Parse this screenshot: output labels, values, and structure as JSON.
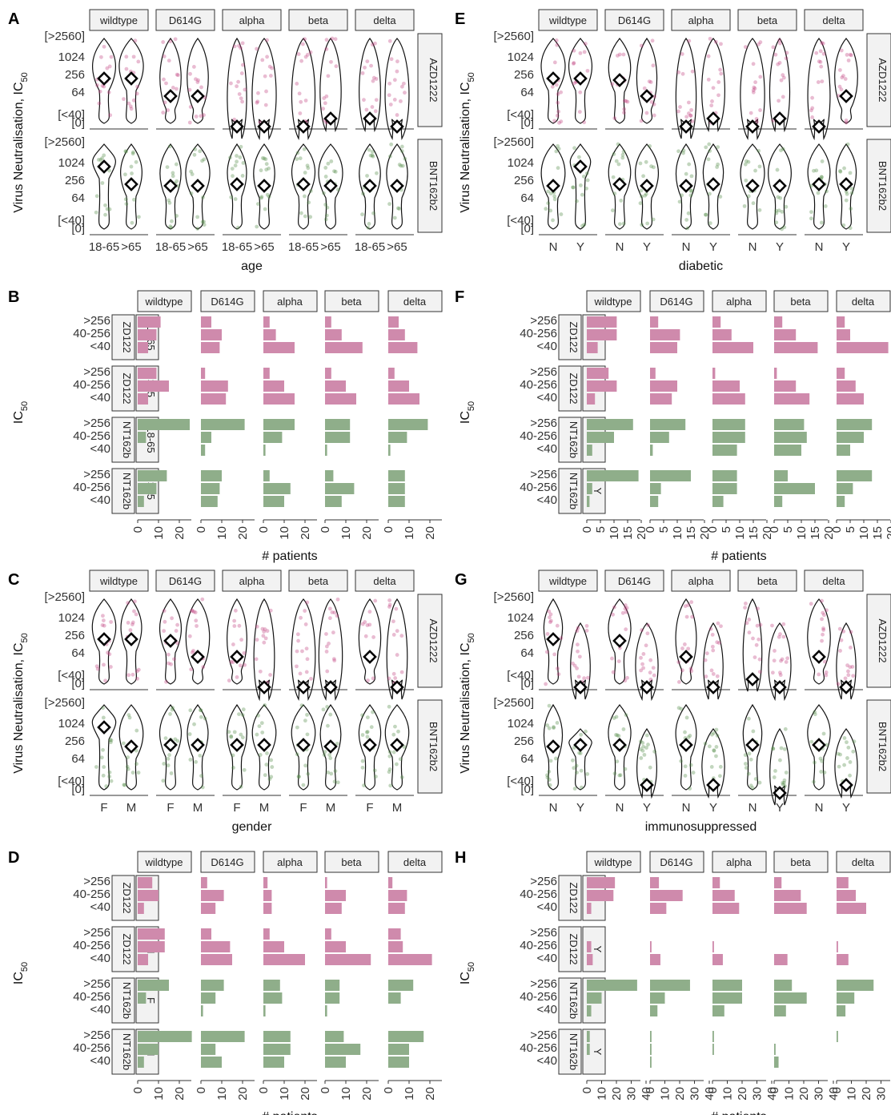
{
  "colors": {
    "AZD1222": "#c0407f",
    "BNT162b2": "#4f8a45",
    "bar_az": "#cf8aac",
    "bar_bnt": "#8fae8a"
  },
  "variants": [
    "wildtype",
    "D614G",
    "alpha",
    "beta",
    "delta"
  ],
  "vaccines": [
    "AZD1222",
    "BNT162b2"
  ],
  "vaccine_strip_labels": [
    "AZD1222",
    "BNT162b2"
  ],
  "bar_vaccine_labels": [
    "ZD122",
    "NT162b"
  ],
  "violin_y_ticks": [
    "[>2560]",
    "1024",
    "256",
    "64",
    "[<40]",
    "[0]"
  ],
  "bar_categories": [
    ">256",
    "40-256",
    "<40"
  ],
  "ylabel_violin": "Virus Neutralisation,  IC",
  "ylabel_bar": "IC",
  "ylabel_sub": "50",
  "xlabel_bar": "# patients",
  "panels": [
    {
      "letter": "A",
      "type": "violin",
      "xlabel": "age",
      "groups": [
        "18-65",
        ">65"
      ]
    },
    {
      "letter": "B",
      "type": "bar",
      "groups": [
        "18-65",
        ">65"
      ],
      "xticks": [
        "0",
        "10",
        "20"
      ]
    },
    {
      "letter": "C",
      "type": "violin",
      "xlabel": "gender",
      "groups": [
        "F",
        "M"
      ]
    },
    {
      "letter": "D",
      "type": "bar",
      "groups": [
        "F",
        "M"
      ],
      "xticks": [
        "0",
        "10",
        "20"
      ]
    },
    {
      "letter": "E",
      "type": "violin",
      "xlabel": "diabetic",
      "groups": [
        "N",
        "Y"
      ]
    },
    {
      "letter": "F",
      "type": "bar",
      "groups": [
        "N",
        "Y"
      ],
      "xticks": [
        "0",
        "5",
        "10",
        "15",
        "20"
      ]
    },
    {
      "letter": "G",
      "type": "violin",
      "xlabel": "immunosuppressed",
      "groups": [
        "N",
        "Y"
      ]
    },
    {
      "letter": "H",
      "type": "bar",
      "groups": [
        "N",
        "Y"
      ],
      "xticks": [
        "0",
        "10",
        "20",
        "30",
        "40"
      ]
    }
  ],
  "chart_data": [
    {
      "panel": "A",
      "type": "violin",
      "yscale": "log2",
      "y_ticks": [
        "[>2560]",
        "1024",
        "256",
        "64",
        "[<40]",
        "[0]"
      ],
      "medians": {
        "AZD1222": {
          "wildtype": [
            256,
            256
          ],
          "D614G": [
            64,
            64
          ],
          "alpha": [
            0,
            0
          ],
          "beta": [
            0,
            20
          ],
          "delta": [
            20,
            0
          ]
        },
        "BNT162b2": {
          "wildtype": [
            1024,
            256
          ],
          "D614G": [
            512,
            128
          ],
          "alpha": [
            256,
            128
          ],
          "beta": [
            256,
            128
          ],
          "delta": [
            512,
            128
          ]
        }
      }
    },
    {
      "panel": "B",
      "type": "bar",
      "x_ticks": [
        "0",
        "10",
        "20"
      ],
      "counts": {
        "AZD1222": {
          "18-65": {
            "wildtype": [
              11,
              9,
              5
            ],
            "D614G": [
              5,
              10,
              9
            ],
            "alpha": [
              3,
              6,
              15
            ],
            "beta": [
              3,
              8,
              18
            ],
            "delta": [
              5,
              8,
              14
            ]
          },
          ">65": {
            "wildtype": [
              9,
              15,
              5
            ],
            "D614G": [
              2,
              13,
              12
            ],
            "alpha": [
              3,
              10,
              15
            ],
            "beta": [
              3,
              10,
              15
            ],
            "delta": [
              3,
              10,
              15
            ]
          }
        },
        "BNT162b2": {
          "18-65": {
            "wildtype": [
              25,
              4,
              0
            ],
            "D614G": [
              21,
              5,
              2
            ],
            "alpha": [
              15,
              9,
              1
            ],
            "beta": [
              12,
              12,
              1
            ],
            "delta": [
              19,
              9,
              1
            ]
          },
          ">65": {
            "wildtype": [
              14,
              9,
              3
            ],
            "D614G": [
              10,
              9,
              8
            ],
            "alpha": [
              3,
              13,
              10
            ],
            "beta": [
              4,
              14,
              8
            ],
            "delta": [
              8,
              8,
              8
            ]
          }
        }
      }
    },
    {
      "panel": "C",
      "type": "violin",
      "yscale": "log2",
      "y_ticks": [
        "[>2560]",
        "1024",
        "256",
        "64",
        "[<40]",
        "[0]"
      ],
      "medians": {
        "AZD1222": {
          "wildtype": [
            256,
            256
          ],
          "D614G": [
            128,
            64
          ],
          "alpha": [
            64,
            0
          ],
          "beta": [
            0,
            0
          ],
          "delta": [
            64,
            0
          ]
        },
        "BNT162b2": {
          "wildtype": [
            1024,
            512
          ],
          "D614G": [
            256,
            256
          ],
          "alpha": [
            256,
            256
          ],
          "beta": [
            256,
            128
          ],
          "delta": [
            256,
            256
          ]
        }
      }
    },
    {
      "panel": "D",
      "type": "bar",
      "x_ticks": [
        "0",
        "10",
        "20"
      ],
      "counts": {
        "AZD1222": {
          "F": {
            "wildtype": [
              7,
              10,
              3
            ],
            "D614G": [
              3,
              11,
              7
            ],
            "alpha": [
              2,
              4,
              4
            ],
            "beta": [
              1,
              10,
              8
            ],
            "delta": [
              2,
              9,
              8
            ]
          },
          "M": {
            "wildtype": [
              13,
              13,
              5
            ],
            "D614G": [
              5,
              14,
              15
            ],
            "alpha": [
              3,
              10,
              20
            ],
            "beta": [
              3,
              10,
              22
            ],
            "delta": [
              6,
              7,
              21
            ]
          }
        },
        "BNT162b2": {
          "F": {
            "wildtype": [
              15,
              4,
              0
            ],
            "D614G": [
              11,
              7,
              1
            ],
            "alpha": [
              8,
              9,
              1
            ],
            "beta": [
              7,
              7,
              1
            ],
            "delta": [
              12,
              6,
              0
            ]
          },
          "M": {
            "wildtype": [
              26,
              10,
              3
            ],
            "D614G": [
              21,
              7,
              10
            ],
            "alpha": [
              13,
              13,
              10
            ],
            "beta": [
              9,
              17,
              10
            ],
            "delta": [
              17,
              10,
              10
            ]
          }
        }
      }
    },
    {
      "panel": "E",
      "type": "violin",
      "yscale": "log2",
      "y_ticks": [
        "[>2560]",
        "1024",
        "256",
        "64",
        "[<40]",
        "[0]"
      ],
      "medians": {
        "AZD1222": {
          "wildtype": [
            256,
            256
          ],
          "D614G": [
            128,
            64
          ],
          "alpha": [
            0,
            20
          ],
          "beta": [
            0,
            20
          ],
          "delta": [
            0,
            64
          ]
        },
        "BNT162b2": {
          "wildtype": [
            512,
            1024
          ],
          "D614G": [
            256,
            512
          ],
          "alpha": [
            128,
            256
          ],
          "beta": [
            128,
            128
          ],
          "delta": [
            256,
            256
          ]
        }
      }
    },
    {
      "panel": "F",
      "type": "bar",
      "x_ticks": [
        "0",
        "5",
        "10",
        "15",
        "20"
      ],
      "counts": {
        "AZD1222": {
          "N": {
            "wildtype": [
              11,
              11,
              4
            ],
            "D614G": [
              3,
              11,
              10
            ],
            "alpha": [
              3,
              7,
              15
            ],
            "beta": [
              3,
              8,
              16
            ],
            "delta": [
              3,
              5,
              19
            ]
          },
          "Y": {
            "wildtype": [
              8,
              11,
              3
            ],
            "D614G": [
              2,
              10,
              8
            ],
            "alpha": [
              1,
              10,
              12
            ],
            "beta": [
              1,
              8,
              13
            ],
            "delta": [
              3,
              7,
              10
            ]
          }
        },
        "BNT162b2": {
          "N": {
            "wildtype": [
              17,
              10,
              2
            ],
            "D614G": [
              13,
              7,
              1
            ],
            "alpha": [
              12,
              12,
              9
            ],
            "beta": [
              11,
              12,
              10
            ],
            "delta": [
              13,
              10,
              5
            ]
          },
          "Y": {
            "wildtype": [
              19,
              2,
              1
            ],
            "D614G": [
              15,
              4,
              3
            ],
            "alpha": [
              9,
              9,
              4
            ],
            "beta": [
              5,
              15,
              3
            ],
            "delta": [
              13,
              6,
              3
            ]
          }
        }
      }
    },
    {
      "panel": "G",
      "type": "violin",
      "yscale": "log2",
      "y_ticks": [
        "[>2560]",
        "1024",
        "256",
        "64",
        "[<40]",
        "[0]"
      ],
      "medians": {
        "AZD1222": {
          "wildtype": [
            256,
            0
          ],
          "D614G": [
            128,
            0
          ],
          "alpha": [
            64,
            0
          ],
          "beta": [
            20,
            0
          ],
          "delta": [
            64,
            0
          ]
        },
        "BNT162b2": {
          "wildtype": [
            512,
            256
          ],
          "D614G": [
            256,
            40
          ],
          "alpha": [
            256,
            20
          ],
          "beta": [
            256,
            0
          ],
          "delta": [
            256,
            20
          ]
        }
      }
    },
    {
      "panel": "H",
      "type": "bar",
      "x_ticks": [
        "0",
        "10",
        "20",
        "30",
        "40"
      ],
      "counts": {
        "AZD1222": {
          "N": {
            "wildtype": [
              19,
              18,
              3
            ],
            "D614G": [
              6,
              22,
              11
            ],
            "alpha": [
              5,
              15,
              18
            ],
            "beta": [
              5,
              18,
              22
            ],
            "delta": [
              8,
              13,
              20
            ]
          },
          "Y": {
            "wildtype": [
              0,
              3,
              4
            ],
            "D614G": [
              0,
              1,
              7
            ],
            "alpha": [
              0,
              1,
              7
            ],
            "beta": [
              0,
              0,
              9
            ],
            "delta": [
              0,
              1,
              8
            ]
          }
        },
        "BNT162b2": {
          "N": {
            "wildtype": [
              34,
              10,
              3
            ],
            "D614G": [
              27,
              10,
              5
            ],
            "alpha": [
              20,
              20,
              8
            ],
            "beta": [
              12,
              22,
              8
            ],
            "delta": [
              25,
              12,
              6
            ]
          },
          "Y": {
            "wildtype": [
              2,
              2,
              0
            ],
            "D614G": [
              1,
              1,
              1
            ],
            "alpha": [
              1,
              1,
              0
            ],
            "beta": [
              0,
              1,
              3
            ],
            "delta": [
              1,
              0,
              0
            ]
          }
        }
      }
    }
  ]
}
